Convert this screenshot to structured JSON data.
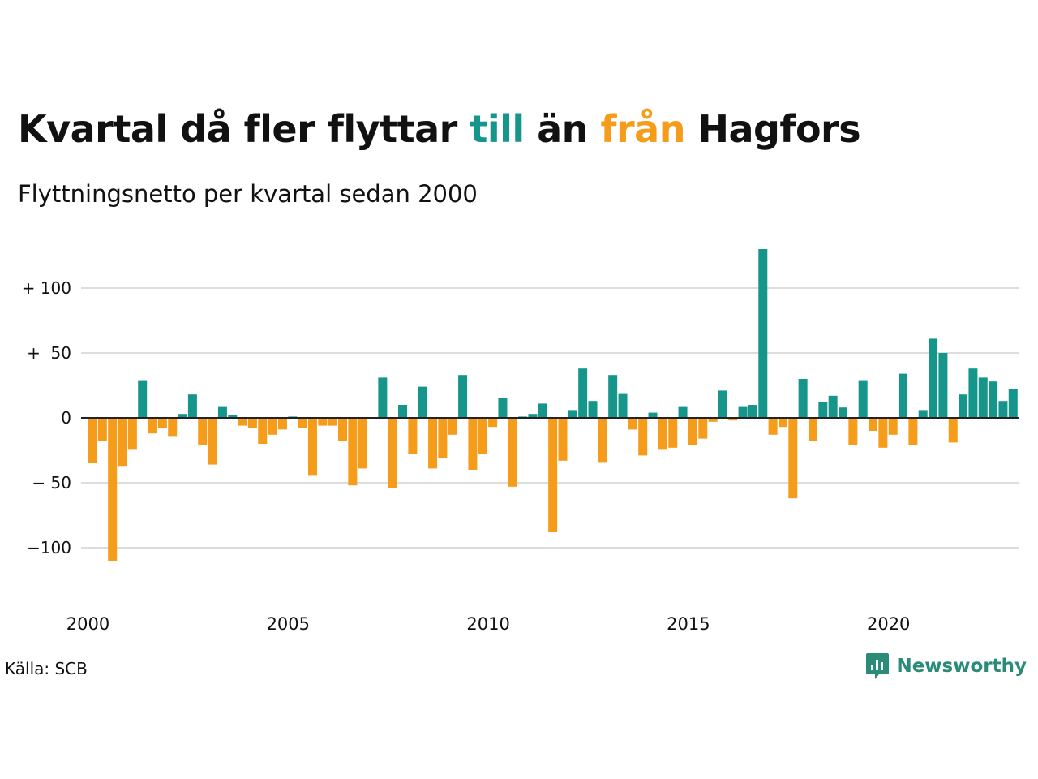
{
  "title": {
    "part1": "Kvartal då fler flyttar ",
    "till": "till",
    "part2": " än ",
    "fran": "från",
    "part3": " Hagfors"
  },
  "subtitle": "Flyttningsnetto per kvartal sedan 2000",
  "source": "Källa: SCB",
  "brand": {
    "name": "Newsworthy",
    "icon": "newsworthy-logo-icon",
    "color": "#2a8c78"
  },
  "colors": {
    "positive": "#16958a",
    "negative": "#f59c1a",
    "grid": "#dddddd",
    "zero": "#222222"
  },
  "chart_data": {
    "type": "bar",
    "title": "Kvartal då fler flyttar till än från Hagfors",
    "subtitle": "Flyttningsnetto per kvartal sedan 2000",
    "x_start_year": 2000,
    "periods_per_year": 4,
    "x_ticks": [
      "2000",
      "2005",
      "2010",
      "2015",
      "2020"
    ],
    "y_ticks": [
      {
        "value": 100,
        "label": "+ 100"
      },
      {
        "value": 50,
        "label": "+  50"
      },
      {
        "value": 0,
        "label": "0"
      },
      {
        "value": -50,
        "label": "− 50"
      },
      {
        "value": -100,
        "label": "−100"
      }
    ],
    "ylim": [
      -140,
      130
    ],
    "grid": true,
    "values": [
      -35,
      -18,
      -110,
      -37,
      -24,
      29,
      -12,
      -8,
      -14,
      3,
      18,
      -21,
      -36,
      9,
      2,
      -6,
      -8,
      -20,
      -13,
      -9,
      1,
      -8,
      -44,
      -6,
      -6,
      -18,
      -52,
      -39,
      0,
      31,
      -54,
      10,
      -28,
      24,
      -39,
      -31,
      -13,
      33,
      -40,
      -28,
      -7,
      15,
      -53,
      1,
      3,
      11,
      -88,
      -33,
      6,
      38,
      13,
      -34,
      33,
      19,
      -9,
      -29,
      4,
      -24,
      -23,
      9,
      -21,
      -16,
      -3,
      21,
      -2,
      9,
      10,
      130,
      -13,
      -7,
      -62,
      30,
      -18,
      12,
      17,
      8,
      -21,
      29,
      -10,
      -23,
      -13,
      34,
      -21,
      6,
      61,
      50,
      -19,
      18,
      38,
      31,
      28,
      13,
      22
    ]
  }
}
